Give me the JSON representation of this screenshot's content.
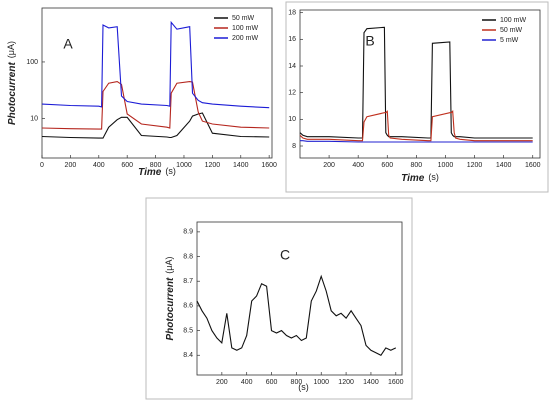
{
  "chart_data": [
    {
      "type": "line",
      "label": "A",
      "x_label": "Time",
      "x_unit": "(s)",
      "y_label": "Photocurrent",
      "y_unit": "(μA)",
      "log_y": true,
      "legend": "upper right",
      "xlim": [
        0,
        1620
      ],
      "xticks": [
        0,
        200,
        400,
        600,
        800,
        1000,
        1200,
        1400,
        1600
      ],
      "ylim": [
        2,
        900
      ],
      "yticks": [
        10,
        100
      ],
      "x": [
        0,
        200,
        400,
        420,
        430,
        470,
        530,
        560,
        600,
        700,
        880,
        900,
        910,
        950,
        1040,
        1060,
        1100,
        1130,
        1200,
        1400,
        1600
      ],
      "series": [
        {
          "name": "50 mW",
          "color": "#111111",
          "values": [
            4.8,
            4.6,
            4.5,
            4.5,
            4.5,
            7,
            9.5,
            10.5,
            10.5,
            5,
            4.7,
            4.6,
            4.6,
            5,
            9,
            11,
            12,
            12.5,
            5.5,
            4.8,
            4.7
          ]
        },
        {
          "name": "100 mW",
          "color": "#b5261e",
          "values": [
            6.8,
            6.6,
            6.5,
            6.5,
            30,
            42,
            45,
            40,
            12,
            8,
            7,
            6.8,
            28,
            42,
            45,
            44,
            13,
            9,
            8,
            7,
            6.8
          ]
        },
        {
          "name": "200 mW",
          "color": "#1c1cd6",
          "values": [
            18,
            17,
            16.5,
            16,
            450,
            400,
            420,
            25,
            20,
            18,
            17,
            16.5,
            500,
            380,
            420,
            28,
            21,
            19,
            18,
            16.5,
            15.5
          ]
        }
      ]
    },
    {
      "type": "line",
      "label": "B",
      "x_label": "Time",
      "x_unit": "(s)",
      "log_y": false,
      "legend": "upper right",
      "xlim": [
        0,
        1650
      ],
      "xticks": [
        200,
        400,
        600,
        800,
        1000,
        1200,
        1400,
        1600
      ],
      "ylim": [
        7.1,
        18.2
      ],
      "yticks": [
        8,
        10,
        12,
        14,
        16,
        18
      ],
      "x": [
        0,
        20,
        50,
        200,
        400,
        430,
        440,
        460,
        580,
        590,
        600,
        610,
        620,
        700,
        880,
        900,
        910,
        1030,
        1040,
        1050,
        1060,
        1070,
        1100,
        1200,
        1400,
        1600
      ],
      "series": [
        {
          "name": "100 mW",
          "color": "#111111",
          "values": [
            9.0,
            8.8,
            8.7,
            8.7,
            8.6,
            8.6,
            16.5,
            16.8,
            16.9,
            9.0,
            8.8,
            8.7,
            8.7,
            8.7,
            8.6,
            8.6,
            15.7,
            15.8,
            9.0,
            8.8,
            8.7,
            8.7,
            8.7,
            8.6,
            8.6,
            8.6
          ]
        },
        {
          "name": "50 mW",
          "color": "#c0301e",
          "values": [
            8.8,
            8.6,
            8.5,
            8.5,
            8.4,
            8.4,
            9.8,
            10.2,
            10.5,
            10.5,
            10.6,
            8.8,
            8.6,
            8.5,
            8.4,
            8.4,
            10.2,
            10.5,
            10.5,
            10.6,
            9.0,
            8.6,
            8.5,
            8.4,
            8.4,
            8.4
          ]
        },
        {
          "name": "5 mW",
          "color": "#2222d0",
          "values": [
            8.4,
            8.4,
            8.35,
            8.35,
            8.3,
            8.3,
            8.3,
            8.3,
            8.3,
            8.3,
            8.3,
            8.3,
            8.3,
            8.3,
            8.3,
            8.3,
            8.3,
            8.3,
            8.3,
            8.3,
            8.3,
            8.3,
            8.3,
            8.3,
            8.3,
            8.3
          ]
        }
      ]
    },
    {
      "type": "line",
      "label": "C",
      "x_unit": "(s)",
      "y_label": "Photocurrent",
      "y_unit": "(μA)",
      "log_y": false,
      "xlim": [
        0,
        1650
      ],
      "xticks": [
        200,
        400,
        600,
        800,
        1000,
        1200,
        1400,
        1600
      ],
      "ylim": [
        8.32,
        8.94
      ],
      "yticks": [
        8.4,
        8.5,
        8.6,
        8.7,
        8.8,
        8.9
      ],
      "x": [
        0,
        40,
        80,
        120,
        160,
        200,
        240,
        280,
        320,
        360,
        400,
        440,
        480,
        520,
        560,
        600,
        640,
        680,
        720,
        760,
        800,
        840,
        880,
        920,
        960,
        1000,
        1040,
        1080,
        1120,
        1160,
        1200,
        1240,
        1280,
        1320,
        1360,
        1400,
        1440,
        1480,
        1520,
        1560,
        1600
      ],
      "series": [
        {
          "color": "#111111",
          "values": [
            8.62,
            8.58,
            8.55,
            8.5,
            8.47,
            8.45,
            8.57,
            8.43,
            8.42,
            8.43,
            8.48,
            8.62,
            8.64,
            8.69,
            8.68,
            8.5,
            8.49,
            8.5,
            8.48,
            8.47,
            8.48,
            8.46,
            8.47,
            8.62,
            8.66,
            8.72,
            8.66,
            8.58,
            8.56,
            8.57,
            8.55,
            8.58,
            8.55,
            8.52,
            8.44,
            8.42,
            8.41,
            8.4,
            8.43,
            8.42,
            8.43
          ]
        }
      ]
    }
  ]
}
